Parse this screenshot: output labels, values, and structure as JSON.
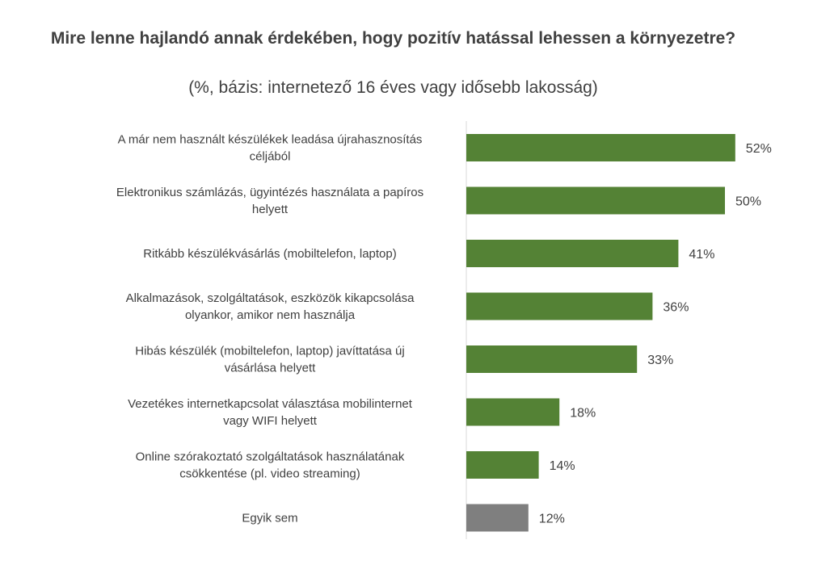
{
  "chart_data": {
    "type": "bar",
    "orientation": "horizontal",
    "title": "Mire lenne hajlandó annak érdekében, hogy pozitív hatással lehessen a környezetre?",
    "subtitle": "(%, bázis: internetező 16 éves vagy idősebb lakosság)",
    "categories": [
      [
        "A már nem használt készülékek leadása újrahasznosítás",
        "céljából"
      ],
      [
        "Elektronikus számlázás, ügyintézés használata a papíros",
        "helyett"
      ],
      [
        "Ritkább készülékvásárlás (mobiltelefon, laptop)"
      ],
      [
        "Alkalmazások, szolgáltatások, eszközök kikapcsolása",
        "olyankor, amikor nem használja"
      ],
      [
        "Hibás készülék (mobiltelefon, laptop) javíttatása új",
        "vásárlása helyett"
      ],
      [
        "Vezetékes internetkapcsolat választása mobilinternet",
        "vagy WIFI helyett"
      ],
      [
        "Online szórakoztató szolgáltatások használatának",
        "csökkentése (pl. video streaming)"
      ],
      [
        "Egyik sem"
      ]
    ],
    "values": [
      52,
      50,
      41,
      36,
      33,
      18,
      14,
      12
    ],
    "value_labels": [
      "52%",
      "50%",
      "41%",
      "36%",
      "33%",
      "18%",
      "14%",
      "12%"
    ],
    "colors": [
      "#548235",
      "#548235",
      "#548235",
      "#548235",
      "#548235",
      "#548235",
      "#548235",
      "#7f7f7f"
    ],
    "xlim": [
      0,
      100
    ],
    "grid": false,
    "legend": "none"
  }
}
